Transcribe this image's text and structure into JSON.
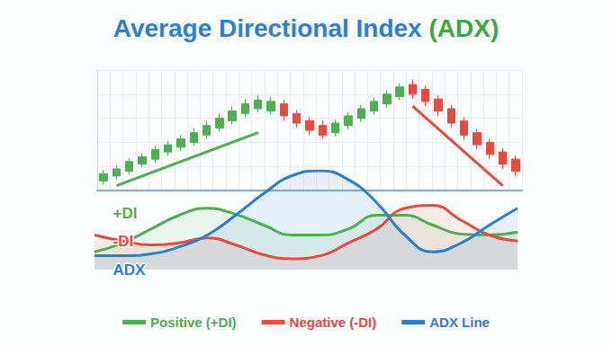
{
  "chart_data": [
    {
      "type": "candlestick",
      "title": "Average Directional Index (ADX)",
      "categories": [
        null,
        null,
        null,
        null,
        null,
        null,
        null,
        null,
        null,
        null,
        null,
        null,
        null,
        null,
        null,
        null,
        null,
        null,
        null,
        null,
        null,
        null,
        null,
        null,
        null,
        null,
        null,
        null,
        null,
        null,
        null,
        null,
        null
      ],
      "values": [
        [
          8,
          14,
          5,
          17
        ],
        [
          12,
          18,
          9,
          21
        ],
        [
          16,
          24,
          13,
          27
        ],
        [
          22,
          28,
          19,
          31
        ],
        [
          26,
          34,
          23,
          37
        ],
        [
          32,
          38,
          29,
          41
        ],
        [
          36,
          43,
          33,
          46
        ],
        [
          40,
          48,
          37,
          52
        ],
        [
          46,
          54,
          43,
          58
        ],
        [
          52,
          60,
          49,
          64
        ],
        [
          58,
          66,
          55,
          70
        ],
        [
          64,
          72,
          61,
          76
        ],
        [
          68,
          75,
          65,
          79
        ],
        [
          66,
          74,
          63,
          78
        ],
        [
          72,
          62,
          58,
          75
        ],
        [
          64,
          56,
          52,
          67
        ],
        [
          58,
          50,
          46,
          61
        ],
        [
          54,
          46,
          43,
          58
        ],
        [
          48,
          56,
          45,
          59
        ],
        [
          54,
          62,
          51,
          65
        ],
        [
          60,
          68,
          57,
          71
        ],
        [
          66,
          74,
          63,
          77
        ],
        [
          72,
          80,
          69,
          83
        ],
        [
          78,
          86,
          75,
          89
        ],
        [
          88,
          80,
          76,
          92
        ],
        [
          84,
          74,
          70,
          87
        ],
        [
          76,
          66,
          62,
          79
        ],
        [
          68,
          56,
          52,
          71
        ],
        [
          58,
          46,
          42,
          61
        ],
        [
          48,
          38,
          34,
          51
        ],
        [
          40,
          30,
          26,
          43
        ],
        [
          32,
          22,
          18,
          35
        ],
        [
          26,
          16,
          12,
          29
        ]
      ],
      "colors": [
        "#4caf50",
        "#4caf50",
        "#4caf50",
        "#4caf50",
        "#4caf50",
        "#4caf50",
        "#4caf50",
        "#4caf50",
        "#4caf50",
        "#4caf50",
        "#4caf50",
        "#4caf50",
        "#4caf50",
        "#4caf50",
        "#e84a3c",
        "#e84a3c",
        "#e84a3c",
        "#e84a3c",
        "#4caf50",
        "#4caf50",
        "#4caf50",
        "#4caf50",
        "#4caf50",
        "#4caf50",
        "#e84a3c",
        "#e84a3c",
        "#e84a3c",
        "#e84a3c",
        "#e84a3c",
        "#e84a3c",
        "#e84a3c",
        "#e84a3c",
        "#e84a3c"
      ],
      "series": [
        {
          "type": "line",
          "color": "#4caf50",
          "values": [
            null,
            4,
            null,
            null,
            null,
            null,
            null,
            null,
            null,
            null,
            null,
            null,
            48,
            null,
            null,
            null,
            null,
            null,
            null,
            null,
            null,
            null,
            null,
            null,
            null,
            null,
            null,
            null,
            null,
            null,
            null,
            null,
            null
          ]
        },
        {
          "type": "line",
          "color": "#e84a3c",
          "values": [
            null,
            null,
            null,
            null,
            null,
            null,
            null,
            null,
            null,
            null,
            null,
            null,
            null,
            null,
            null,
            null,
            null,
            null,
            null,
            null,
            null,
            null,
            null,
            null,
            70,
            null,
            null,
            null,
            null,
            null,
            null,
            4,
            null
          ]
        }
      ],
      "ylim": [
        0,
        100
      ],
      "yticks": [
        0,
        20,
        40,
        60,
        80,
        100
      ],
      "grid": true,
      "tick_labels": false
    },
    {
      "type": "line",
      "categories": [
        null,
        null,
        null,
        null,
        null,
        null,
        null,
        null,
        null,
        null,
        null,
        null,
        null,
        null,
        null,
        null
      ],
      "series": [
        {
          "name": "Positive (+DI)",
          "label": "+DI",
          "color": "#4caf50",
          "values": [
            18,
            27,
            41,
            55,
            62,
            56,
            45,
            35,
            35,
            41,
            55,
            55,
            45,
            36,
            35,
            38
          ]
        },
        {
          "name": "Negative (-DI)",
          "label": "-DI",
          "color": "#e84a3c",
          "values": [
            35,
            29,
            25,
            27,
            32,
            25,
            15,
            11,
            14,
            27,
            41,
            62,
            65,
            50,
            35,
            29
          ]
        },
        {
          "name": "ADX Line",
          "label": "ADX",
          "color": "#2a7fd4",
          "values": [
            14,
            14,
            16,
            23,
            35,
            55,
            77,
            95,
            100,
            91,
            68,
            35,
            18,
            27,
            45,
            62
          ]
        }
      ],
      "ylim": [
        0,
        100
      ],
      "yticks": [
        0,
        25,
        50,
        75,
        100
      ],
      "grid": false,
      "tick_labels": false,
      "legend": "bottom"
    }
  ]
}
